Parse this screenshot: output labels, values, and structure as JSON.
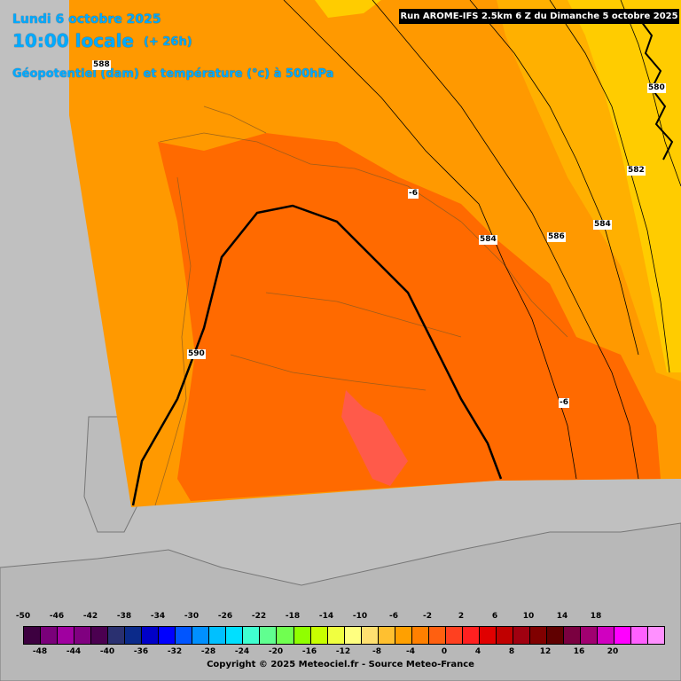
{
  "header": {
    "date": "Lundi 6 octobre 2025",
    "time": "10:00 locale",
    "lead": "(+ 26h)",
    "subtitle": "Géopotentiel (dam) et température (°c) à 500hPa",
    "run": "Run AROME-IFS 2.5km 6 Z du Dimanche 5 octobre 2025"
  },
  "map_labels": {
    "contours": [
      "588",
      "590",
      "580",
      "582",
      "584",
      "586",
      "584"
    ],
    "temperatures": [
      "-6",
      "-6"
    ]
  },
  "legend": {
    "colors": [
      "#3d0040",
      "#7a007a",
      "#a000a0",
      "#800080",
      "#4b0050",
      "#2a3070",
      "#0b2a8a",
      "#0000c8",
      "#0000ff",
      "#0055ff",
      "#0090ff",
      "#00c0ff",
      "#00e0ff",
      "#40ffd0",
      "#60ff90",
      "#70ff50",
      "#90ff00",
      "#c8ff00",
      "#f0ff40",
      "#ffff80",
      "#ffe070",
      "#ffc030",
      "#ffa000",
      "#ff8000",
      "#ff6010",
      "#ff4020",
      "#ff2020",
      "#e00000",
      "#c00000",
      "#a00010",
      "#800000",
      "#600000",
      "#7a0040",
      "#a00070",
      "#d000c0",
      "#ff00ff",
      "#ff60ff",
      "#ff90ff"
    ],
    "top_labels": [
      "-50",
      "-46",
      "-42",
      "-38",
      "-34",
      "-30",
      "-26",
      "-22",
      "-18",
      "-14",
      "-10",
      "-6",
      "-2",
      "2",
      "6",
      "10",
      "14",
      "18"
    ],
    "bottom_labels": [
      "-48",
      "-44",
      "-40",
      "-36",
      "-32",
      "-28",
      "-24",
      "-20",
      "-16",
      "-12",
      "-8",
      "-4",
      "0",
      "4",
      "8",
      "12",
      "16",
      "20"
    ]
  },
  "copyright": "Copyright © 2025 Meteociel.fr - Source Meteo-France"
}
